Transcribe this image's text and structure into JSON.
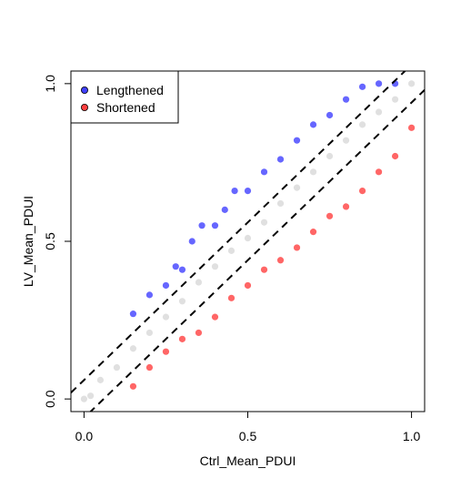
{
  "chart_data": {
    "type": "scatter",
    "title": "",
    "xlabel": "Ctrl_Mean_PDUI",
    "ylabel": "LV_Mean_PDUI",
    "xlim": [
      -0.04,
      1.04
    ],
    "ylim": [
      -0.04,
      1.04
    ],
    "x_ticks": [
      "0.0",
      "0.5",
      "1.0"
    ],
    "x_tick_values": [
      0,
      0.5,
      1
    ],
    "y_ticks": [
      "0.0",
      "0.5",
      "1.0"
    ],
    "y_tick_values": [
      0,
      0.5,
      1
    ],
    "grid": false,
    "legend_position": "top-left",
    "reference_lines": [
      {
        "style": "dashed",
        "intercept": 0.06,
        "slope": 1.0
      },
      {
        "style": "dashed",
        "intercept": -0.06,
        "slope": 1.0
      }
    ],
    "series": [
      {
        "name": "",
        "role": "not significant",
        "color": "#000000",
        "opacity": 0.12,
        "points": [
          [
            0.0,
            0.0
          ],
          [
            0.02,
            0.01
          ],
          [
            0.05,
            0.06
          ],
          [
            0.1,
            0.1
          ],
          [
            0.15,
            0.16
          ],
          [
            0.2,
            0.21
          ],
          [
            0.25,
            0.26
          ],
          [
            0.3,
            0.31
          ],
          [
            0.35,
            0.37
          ],
          [
            0.4,
            0.42
          ],
          [
            0.45,
            0.47
          ],
          [
            0.5,
            0.51
          ],
          [
            0.55,
            0.56
          ],
          [
            0.6,
            0.62
          ],
          [
            0.65,
            0.67
          ],
          [
            0.7,
            0.72
          ],
          [
            0.75,
            0.77
          ],
          [
            0.8,
            0.82
          ],
          [
            0.85,
            0.87
          ],
          [
            0.9,
            0.91
          ],
          [
            0.95,
            0.95
          ],
          [
            1.0,
            1.0
          ]
        ]
      },
      {
        "name": "Lengthened",
        "color": "#0000ff",
        "opacity": 0.6,
        "points": [
          [
            0.15,
            0.27
          ],
          [
            0.2,
            0.33
          ],
          [
            0.25,
            0.36
          ],
          [
            0.28,
            0.42
          ],
          [
            0.3,
            0.41
          ],
          [
            0.33,
            0.5
          ],
          [
            0.36,
            0.55
          ],
          [
            0.4,
            0.55
          ],
          [
            0.43,
            0.6
          ],
          [
            0.46,
            0.66
          ],
          [
            0.5,
            0.66
          ],
          [
            0.55,
            0.72
          ],
          [
            0.6,
            0.76
          ],
          [
            0.65,
            0.82
          ],
          [
            0.7,
            0.87
          ],
          [
            0.75,
            0.9
          ],
          [
            0.8,
            0.95
          ],
          [
            0.85,
            0.99
          ],
          [
            0.9,
            1.0
          ],
          [
            0.95,
            1.0
          ]
        ]
      },
      {
        "name": "Shortened",
        "color": "#ff0000",
        "opacity": 0.6,
        "points": [
          [
            0.15,
            0.04
          ],
          [
            0.2,
            0.1
          ],
          [
            0.25,
            0.15
          ],
          [
            0.3,
            0.19
          ],
          [
            0.35,
            0.21
          ],
          [
            0.4,
            0.26
          ],
          [
            0.45,
            0.32
          ],
          [
            0.5,
            0.36
          ],
          [
            0.55,
            0.41
          ],
          [
            0.6,
            0.44
          ],
          [
            0.65,
            0.48
          ],
          [
            0.7,
            0.53
          ],
          [
            0.75,
            0.58
          ],
          [
            0.8,
            0.61
          ],
          [
            0.85,
            0.66
          ],
          [
            0.9,
            0.72
          ],
          [
            0.95,
            0.77
          ],
          [
            1.0,
            0.86
          ]
        ]
      }
    ]
  }
}
